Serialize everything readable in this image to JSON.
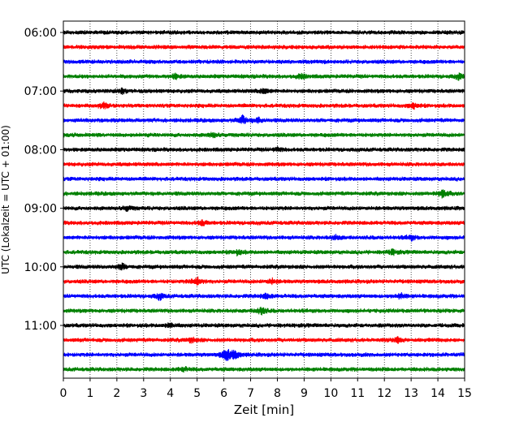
{
  "chart_data": {
    "type": "line",
    "xlabel": "Zeit  [min]",
    "ylabel": "UTC (Lokalzeit = UTC + 01:00)",
    "xlim": [
      0,
      15
    ],
    "x_ticks": [
      "0",
      "1",
      "2",
      "3",
      "4",
      "5",
      "6",
      "7",
      "8",
      "9",
      "10",
      "11",
      "12",
      "13",
      "14",
      "15"
    ],
    "y_ticks": [
      "06:00",
      "07:00",
      "08:00",
      "09:00",
      "10:00",
      "11:00"
    ],
    "vertical_grid": true,
    "grid_style": "dotted",
    "trace_interval_minutes": 15,
    "first_trace": "06:00",
    "last_trace": "11:45",
    "trace_count": 24,
    "trace_colors": [
      "#000000",
      "#ff0000",
      "#0000ff",
      "#008000"
    ],
    "events": [
      {
        "trace": "06:45",
        "minute": 4.2,
        "amplitude": 0.3
      },
      {
        "trace": "06:45",
        "minute": 8.9,
        "amplitude": 0.3
      },
      {
        "trace": "06:45",
        "minute": 14.8,
        "amplitude": 0.35
      },
      {
        "trace": "07:00",
        "minute": 2.2,
        "amplitude": 0.3
      },
      {
        "trace": "07:00",
        "minute": 7.5,
        "amplitude": 0.35
      },
      {
        "trace": "07:15",
        "minute": 1.5,
        "amplitude": 0.35
      },
      {
        "trace": "07:15",
        "minute": 13.1,
        "amplitude": 0.35
      },
      {
        "trace": "07:30",
        "minute": 6.7,
        "amplitude": 0.55
      },
      {
        "trace": "07:30",
        "minute": 7.3,
        "amplitude": 0.3
      },
      {
        "trace": "07:45",
        "minute": 5.6,
        "amplitude": 0.3
      },
      {
        "trace": "08:00",
        "minute": 8.0,
        "amplitude": 0.25
      },
      {
        "trace": "08:45",
        "minute": 14.2,
        "amplitude": 0.55
      },
      {
        "trace": "09:00",
        "minute": 2.4,
        "amplitude": 0.3
      },
      {
        "trace": "09:15",
        "minute": 5.2,
        "amplitude": 0.3
      },
      {
        "trace": "09:30",
        "minute": 10.2,
        "amplitude": 0.25
      },
      {
        "trace": "09:30",
        "minute": 13.0,
        "amplitude": 0.3
      },
      {
        "trace": "09:45",
        "minute": 6.5,
        "amplitude": 0.3
      },
      {
        "trace": "09:45",
        "minute": 12.3,
        "amplitude": 0.3
      },
      {
        "trace": "10:00",
        "minute": 2.2,
        "amplitude": 0.4
      },
      {
        "trace": "10:15",
        "minute": 5.0,
        "amplitude": 0.55
      },
      {
        "trace": "10:15",
        "minute": 7.8,
        "amplitude": 0.3
      },
      {
        "trace": "10:30",
        "minute": 3.6,
        "amplitude": 0.4
      },
      {
        "trace": "10:30",
        "minute": 7.6,
        "amplitude": 0.35
      },
      {
        "trace": "10:30",
        "minute": 12.6,
        "amplitude": 0.35
      },
      {
        "trace": "10:45",
        "minute": 7.4,
        "amplitude": 0.5
      },
      {
        "trace": "11:00",
        "minute": 4.0,
        "amplitude": 0.3
      },
      {
        "trace": "11:15",
        "minute": 4.8,
        "amplitude": 0.3
      },
      {
        "trace": "11:15",
        "minute": 12.5,
        "amplitude": 0.3
      },
      {
        "trace": "11:30",
        "minute": 6.1,
        "amplitude": 0.8
      },
      {
        "trace": "11:30",
        "minute": 6.4,
        "amplitude": 0.6
      },
      {
        "trace": "11:45",
        "minute": 4.5,
        "amplitude": 0.25
      }
    ]
  }
}
